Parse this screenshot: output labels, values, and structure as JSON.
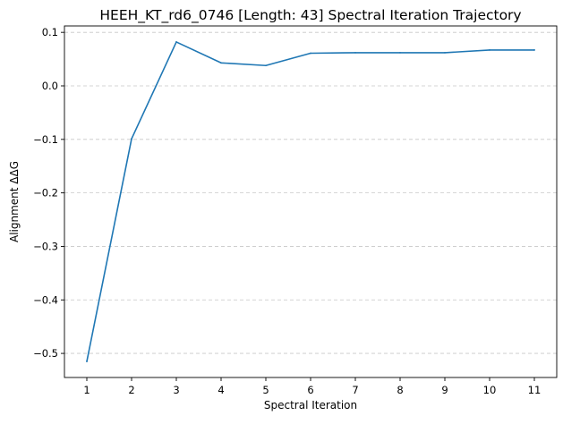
{
  "chart_data": {
    "type": "line",
    "title": "HEEH_KT_rd6_0746 [Length: 43] Spectral Iteration Trajectory",
    "xlabel": "Spectral Iteration",
    "ylabel": "Alignment ΔΔG",
    "x": [
      1,
      2,
      3,
      4,
      5,
      6,
      7,
      8,
      9,
      10,
      11
    ],
    "series": [
      {
        "values": [
          -0.515,
          -0.099,
          0.082,
          0.043,
          0.038,
          0.061,
          0.062,
          0.062,
          0.062,
          0.067,
          0.067
        ],
        "color": "#1f77b4"
      }
    ],
    "xticks": [
      1,
      2,
      3,
      4,
      5,
      6,
      7,
      8,
      9,
      10,
      11
    ],
    "yticks": [
      -0.5,
      -0.4,
      -0.3,
      -0.2,
      -0.1,
      0.0,
      0.1
    ],
    "ytick_labels": [
      "−0.5",
      "−0.4",
      "−0.3",
      "−0.2",
      "−0.1",
      "0.0",
      "0.1"
    ],
    "xlim": [
      0.5,
      11.5
    ],
    "ylim": [
      -0.545,
      0.112
    ],
    "grid": "y-axis dashed"
  }
}
